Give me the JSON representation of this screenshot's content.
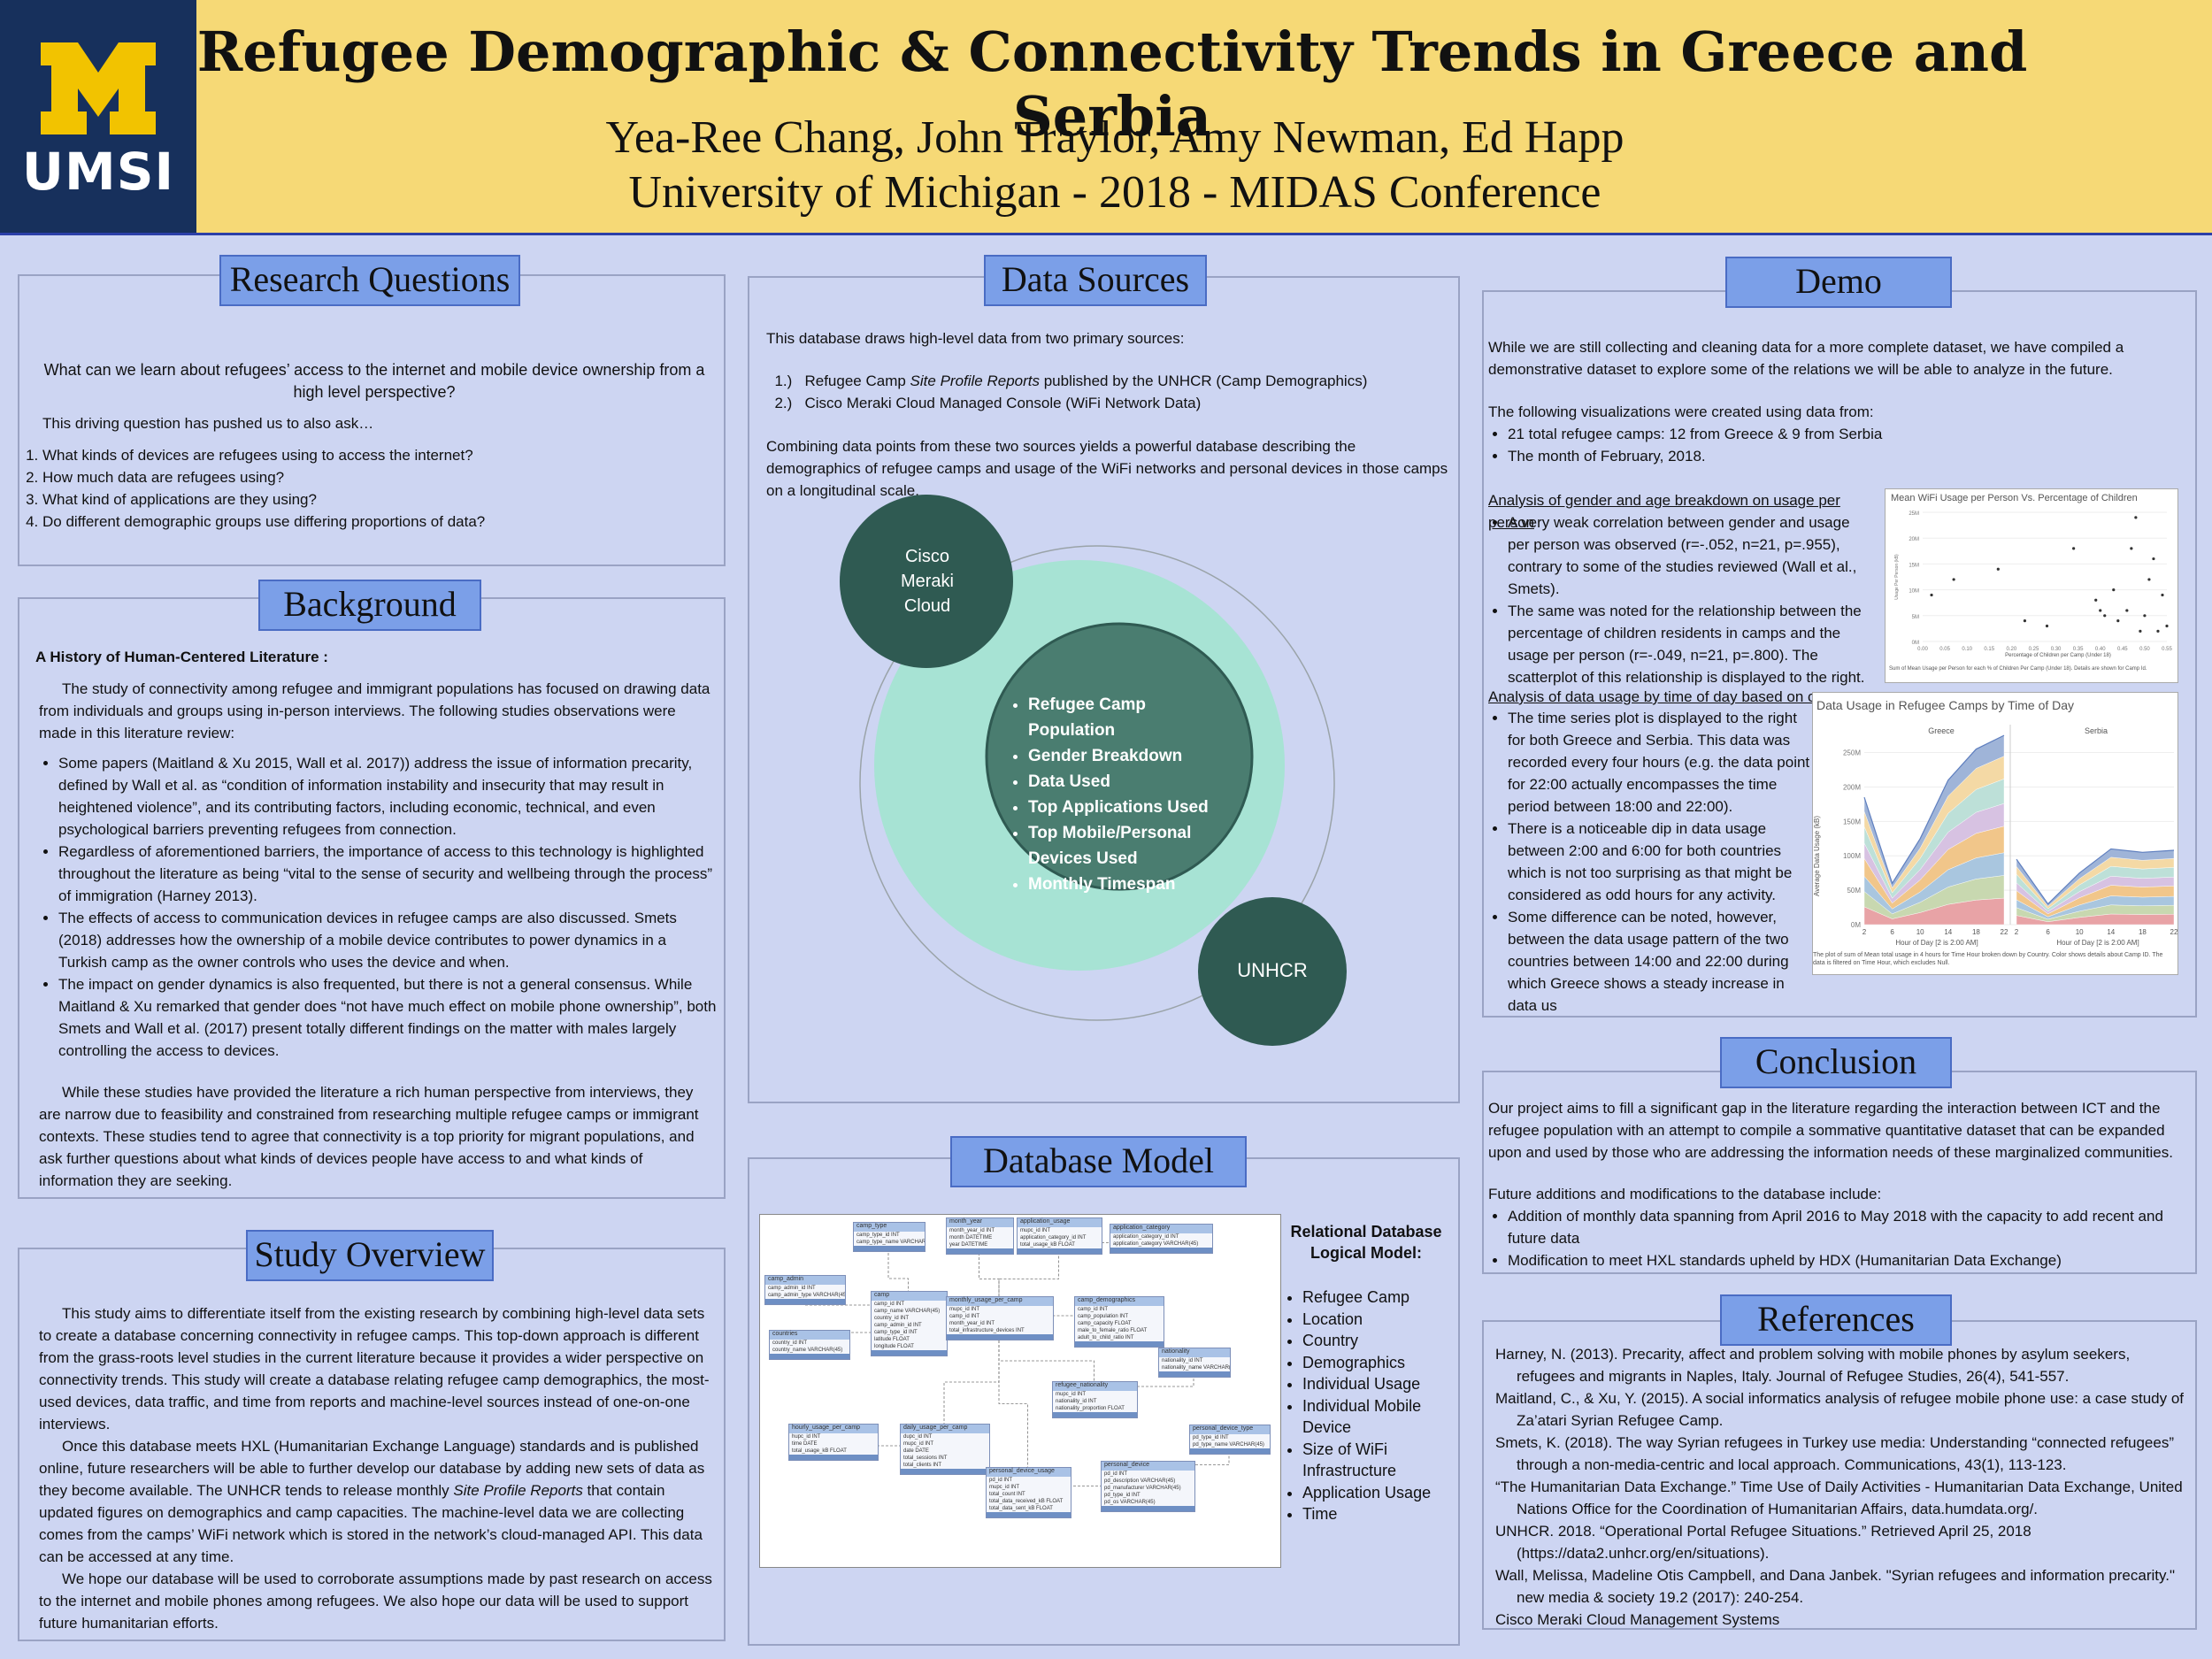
{
  "header": {
    "logo_text": "UMSI",
    "title": "Refugee Demographic & Connectivity Trends in Greece and Serbia",
    "authors": "Yea-Ree Chang, John Traylor, Amy Newman, Ed Happ",
    "affiliation": "University of Michigan - 2018 - MIDAS Conference"
  },
  "research": {
    "title": "Research  Questions",
    "main_question": "What can we learn about refugees’ access to the internet and mobile device ownership from a high level perspective?",
    "lead": "This driving question has pushed us to also ask…",
    "items": [
      "What kinds of devices are refugees using to access the internet?",
      "How much data are refugees using?",
      "What kind of applications are they using?",
      "Do different demographic groups use differing proportions of data?"
    ]
  },
  "background": {
    "title": "Background",
    "subtitle": "A History of Human-Centered Literature :",
    "intro": "The study of connectivity among refugee and immigrant populations has focused on drawing data from individuals and groups using in-person interviews.  The following studies observations were made in this literature review:",
    "bullets": [
      "Some papers (Maitland & Xu 2015, Wall et al. 2017)) address the issue of information precarity, defined by Wall et al. as “condition of information instability and insecurity that may result in heightened violence”, and its contributing factors, including economic, technical, and even psychological barriers preventing refugees from connection.",
      "Regardless of aforementioned barriers, the importance of access to this technology is highlighted throughout the literature as being “vital to the sense of security and wellbeing through the process” of immigration (Harney 2013).",
      "The effects of access to communication devices in refugee camps are also discussed. Smets (2018) addresses how the ownership of a mobile device contributes to power dynamics in a Turkish camp as the owner controls who uses the device and when.",
      "The impact on gender dynamics is also frequented, but there is not a general consensus. While Maitland & Xu remarked that gender does “not have much effect on mobile phone ownership”, both Smets and Wall et al. (2017) present totally different findings on the matter with males largely controlling the access to devices."
    ],
    "closing": "While these studies have provided the literature a rich human perspective from interviews, they are narrow due to feasibility and constrained from researching multiple refugee camps or immigrant contexts. These studies tend to agree that connectivity is a top priority for migrant populations, and ask further questions about what kinds of devices people have access to and what kinds of information they are seeking."
  },
  "study": {
    "title": "Study Overview",
    "p1": "This study aims to differentiate itself from the existing research by combining high-level data sets to create a database concerning connectivity in refugee camps.  This top-down approach is different from the grass-roots level studies in the current literature because it provides a wider perspective on connectivity trends.  This study will create a database relating refugee camp demographics, the most-used devices, data traffic, and time from reports and machine-level sources instead of one-on-one interviews.",
    "p2a": "Once this database meets HXL (Humanitarian Exchange Language) standards and is published online, future researchers will be able to further develop our database by adding new sets of data as they become available.  The UNHCR tends to release monthly ",
    "p2em": "Site Profile Reports",
    "p2b": " that contain updated figures on demographics and camp capacities.  The machine-level data we are collecting comes from the camps’ WiFi network which is stored in the network’s cloud-managed API.  This data can be accessed at any time.",
    "p3": "We hope our database will be used to corroborate assumptions made by past research on access to the internet and mobile phones among refugees.  We also hope our data will be used to support future humanitarian efforts."
  },
  "sources": {
    "title": "Data Sources",
    "intro": "This database draws high-level data from two primary sources:",
    "item1a": "Refugee Camp ",
    "item1em": "Site Profile Reports",
    "item1b": " published by the UNHCR (Camp Demographics)",
    "item2": "Cisco Meraki Cloud Managed Console (WiFi Network Data)",
    "combining": "Combining data points from these two sources yields a powerful database describing the demographics of refugee camps and usage of the WiFi networks and personal devices in those camps on a longitudinal scale.",
    "cisco_label": "Cisco Meraki Cloud",
    "unhcr_label": "UNHCR",
    "center_items": [
      "Refugee Camp Population",
      "Gender Breakdown",
      "Data Used",
      "Top Applications Used",
      "Top Mobile/Personal Devices Used",
      "Monthly Timespan"
    ]
  },
  "dbmodel": {
    "title": "Database Model",
    "side_title": "Relational Database Logical Model:",
    "items": [
      "Refugee Camp",
      "Location",
      "Country",
      "Demographics",
      "Individual Usage",
      "Individual Mobile Device",
      "Size of WiFi Infrastructure",
      "Application Usage",
      "Time"
    ],
    "tables": [
      {
        "name": "camp_type",
        "fields": [
          "camp_type_id INT",
          "camp_type_name VARCHAR(45)"
        ]
      },
      {
        "name": "month_year",
        "fields": [
          "month_year_id INT",
          "month DATETIME",
          "year DATETIME"
        ]
      },
      {
        "name": "application_usage",
        "fields": [
          "mupc_id INT",
          "application_category_id INT",
          "total_usage_kB FLOAT"
        ]
      },
      {
        "name": "application_category",
        "fields": [
          "application_category_id INT",
          "application_category VARCHAR(45)"
        ]
      },
      {
        "name": "camp_admin",
        "fields": [
          "camp_admin_id INT",
          "camp_admin_type VARCHAR(45)"
        ]
      },
      {
        "name": "camp",
        "fields": [
          "camp_id INT",
          "camp_name VARCHAR(45)",
          "country_id INT",
          "camp_admin_id INT",
          "camp_type_id INT",
          "latitude FLOAT",
          "longitude FLOAT"
        ]
      },
      {
        "name": "monthly_usage_per_camp",
        "fields": [
          "mupc_id INT",
          "camp_id INT",
          "month_year_id INT",
          "total_infrastructure_devices INT"
        ]
      },
      {
        "name": "camp_demographics",
        "fields": [
          "camp_id INT",
          "camp_population INT",
          "camp_capacity FLOAT",
          "male_to_female_ratio FLOAT",
          "adult_to_child_ratio INT"
        ]
      },
      {
        "name": "countries",
        "fields": [
          "country_id INT",
          "country_name VARCHAR(45)"
        ]
      },
      {
        "name": "nationality",
        "fields": [
          "nationality_id INT",
          "nationality_name VARCHAR(45)"
        ]
      },
      {
        "name": "refugee_nationality",
        "fields": [
          "mupc_id INT",
          "nationality_id INT",
          "nationality_proportion FLOAT"
        ]
      },
      {
        "name": "hourly_usage_per_camp",
        "fields": [
          "hupc_id INT",
          "time DATE",
          "total_usage_kB FLOAT"
        ]
      },
      {
        "name": "daily_usage_per_camp",
        "fields": [
          "dupc_id INT",
          "mupc_id INT",
          "date DATE",
          "total_sessions INT",
          "total_clients INT"
        ]
      },
      {
        "name": "personal_device_usage",
        "fields": [
          "pd_id INT",
          "mupc_id INT",
          "total_count INT",
          "total_data_received_kB FLOAT",
          "total_data_sent_kB FLOAT"
        ]
      },
      {
        "name": "personal_device",
        "fields": [
          "pd_id INT",
          "pd_description VARCHAR(45)",
          "pd_manufacturer VARCHAR(45)",
          "pd_type_id INT",
          "pd_os VARCHAR(45)"
        ]
      },
      {
        "name": "personal_device_type",
        "fields": [
          "pd_type_id INT",
          "pd_type_name VARCHAR(45)"
        ]
      }
    ]
  },
  "demo": {
    "title": "Demo",
    "intro": "While we are still collecting and cleaning data for a more complete dataset, we have compiled a demonstrative dataset to explore some of the relations we will be able to analyze in the future.",
    "following": "The following visualizations were created using data from:",
    "bullets": [
      "21 total refugee camps: 12 from Greece & 9 from Serbia",
      "The month of February, 2018."
    ],
    "gender_heading": "Analysis of gender and age breakdown on usage per person",
    "gender_bullets": [
      "A very weak correlation between gender and usage per person was observed (r=-.052, n=21, p=.955), contrary to some of the studies reviewed (Wall et al., Smets).",
      "The same was noted for the relationship between the percentage of children residents in camps and the usage per person (r=-.049, n=21, p=.800). The scatterplot of this relationship is displayed to the right."
    ],
    "time_heading": "Analysis of data usage by time of day based on country",
    "time_bullets": [
      "The time series plot is displayed to the right for both Greece and Serbia. This data was recorded every four hours (e.g. the data point for 22:00 actually encompasses the time period between 18:00 and 22:00).",
      "There is a noticeable dip in data usage between 2:00 and 6:00 for both countries which is not too surprising as that might be considered as odd hours for any activity.",
      "Some difference can be noted, however, between the data usage pattern of the two countries between 14:00 and 22:00 during which Greece shows a steady increase in data us"
    ]
  },
  "chart_data": [
    {
      "type": "scatter",
      "title": "Mean WiFi Usage per Person Vs. Percentage of Children",
      "xlabel": "Percentage of Children per Camp (Under 18)",
      "ylabel": "Usage Per Person (kB)",
      "x_ticks": [
        "0.00",
        "0.05",
        "0.10",
        "0.15",
        "0.20",
        "0.25",
        "0.30",
        "0.35",
        "0.40",
        "0.45",
        "0.50",
        "0.55"
      ],
      "y_ticks": [
        "0M",
        "5M",
        "10M",
        "15M",
        "20M",
        "25M"
      ],
      "xlim": [
        0,
        0.55
      ],
      "ylim": [
        0,
        25
      ],
      "x": [
        0.02,
        0.07,
        0.17,
        0.23,
        0.28,
        0.34,
        0.39,
        0.4,
        0.41,
        0.43,
        0.44,
        0.46,
        0.47,
        0.48,
        0.49,
        0.5,
        0.51,
        0.52,
        0.53,
        0.54,
        0.56
      ],
      "y": [
        9,
        12,
        14,
        4,
        3,
        18,
        8,
        6,
        5,
        10,
        4,
        6,
        18,
        24,
        2,
        5,
        12,
        16,
        2,
        9,
        3
      ],
      "note": "Sum of Mean Usage per Person for each % of Children Per Camp (Under 18). Details are shown for Camp Id."
    },
    {
      "type": "area",
      "title": "Data Usage in Refugee Camps by Time of Day",
      "ylabel": "Average Data Usage (kB)",
      "xlabel": "Hour of Day [2 is 2:00 AM]",
      "panels": [
        "Greece",
        "Serbia"
      ],
      "x": [
        2,
        6,
        10,
        14,
        18,
        22
      ],
      "x_ticks": [
        "2",
        "6",
        "10",
        "14",
        "18",
        "22"
      ],
      "y_ticks": [
        "0M",
        "50M",
        "100M",
        "150M",
        "200M",
        "250M"
      ],
      "ylim": [
        0,
        270
      ],
      "series": [
        {
          "name": "Greece",
          "values": [
            185,
            60,
            125,
            210,
            255,
            275
          ]
        },
        {
          "name": "Serbia",
          "values": [
            95,
            30,
            75,
            110,
            105,
            108
          ]
        }
      ],
      "note": "The plot of sum of Mean total usage in 4 hours for Time Hour broken down by Country.  Color shows details about Camp ID. The data is filtered on Time Hour, which excludes Null."
    }
  ],
  "conclusion": {
    "title": "Conclusion",
    "p1": "Our project aims to fill a significant gap in the literature regarding the interaction between ICT and the refugee population with an attempt to compile a sommative quantitative dataset that can be expanded upon and used by those who are addressing the information needs of these marginalized communities.",
    "future": "Future additions and modifications to the database include:",
    "bullets": [
      "Addition of monthly data spanning from April 2016 to May 2018 with the capacity to add recent and future data",
      "Modification to meet HXL standards upheld by HDX (Humanitarian Data Exchange)"
    ]
  },
  "references": {
    "title": "References",
    "items": [
      "Harney, N. (2013). Precarity, affect and problem solving with mobile phones by asylum seekers, refugees and migrants in Naples, Italy. Journal of Refugee Studies, 26(4), 541-557.",
      "Maitland, C., & Xu, Y. (2015). A social informatics analysis of refugee mobile phone use: a case study of Za’atari Syrian Refugee Camp.",
      "Smets, K. (2018). The way Syrian refugees in Turkey use media: Understanding “connected refugees” through a non-media-centric and local approach. Communications, 43(1), 113-123.",
      "“The Humanitarian Data Exchange.” Time Use of Daily Activities - Humanitarian Data Exchange, United Nations Office for the Coordination of Humanitarian Affairs, data.humdata.org/.",
      "UNHCR. 2018. “Operational Portal Refugee Situations.” Retrieved April 25, 2018 (https://data2.unhcr.org/en/situations).",
      "Wall, Melissa, Madeline Otis Campbell, and Dana Janbek. \"Syrian refugees and information precarity.\" new media & society 19.2 (2017): 240-254.",
      "Cisco Meraki Cloud Management Systems"
    ]
  },
  "colors": {
    "header_bg": "#f6d976",
    "logo_bg": "#17305c",
    "logo_m": "#f2c300",
    "section_bg": "#7b9fe8",
    "page_bg": "#cdd5f2",
    "circle_dark": "#2f5a52",
    "circle_mid": "#4a7d70",
    "circle_light": "#a7e3d4"
  }
}
